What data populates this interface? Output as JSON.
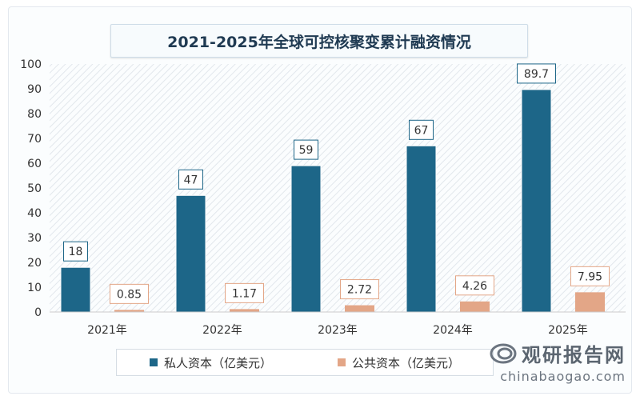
{
  "colors": {
    "private": "#1d6688",
    "public": "#e3a687",
    "grid_hatch": "#e6eaee"
  },
  "brand": {
    "logo_icon": "swirl-logo-icon",
    "name": "观研报告网",
    "url": "chinabaogao.com"
  },
  "chart_data": {
    "type": "bar",
    "title": "2021-2025年全球可控核聚变累计融资情况",
    "categories": [
      "2021年",
      "2022年",
      "2023年",
      "2024年",
      "2025年"
    ],
    "series": [
      {
        "name": "私人资本（亿美元）",
        "values": [
          18,
          47,
          59,
          67,
          89.7
        ],
        "labels": [
          "18",
          "47",
          "59",
          "67",
          "89.7"
        ]
      },
      {
        "name": "公共资本（亿美元）",
        "values": [
          0.85,
          1.17,
          2.72,
          4.26,
          7.95
        ],
        "labels": [
          "0.85",
          "1.17",
          "2.72",
          "4.26",
          "7.95"
        ]
      }
    ],
    "ylim": [
      0,
      100
    ],
    "yticks": [
      0,
      10,
      20,
      30,
      40,
      50,
      60,
      70,
      80,
      90,
      100
    ],
    "legend_position": "bottom",
    "grid": false
  }
}
